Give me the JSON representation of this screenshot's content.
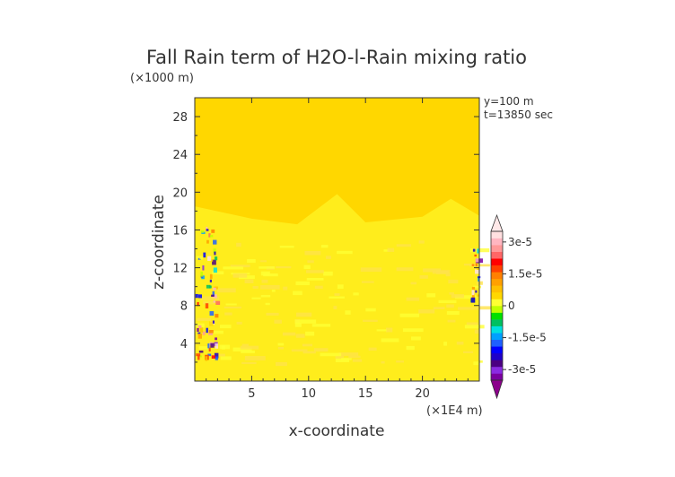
{
  "chart_data": {
    "type": "heatmap",
    "title": "Fall Rain term of H2O-l-Rain mixing ratio",
    "xlabel": "x-coordinate",
    "ylabel": "z-coordinate",
    "x_unit": "(×1E4 m)",
    "y_unit": "(×1000 m)",
    "annotations": [
      "y=100 m",
      "t=13850 sec"
    ],
    "xlim": [
      0,
      25
    ],
    "ylim": [
      0,
      30
    ],
    "x_ticks": [
      5,
      10,
      15,
      20
    ],
    "y_ticks": [
      4,
      8,
      12,
      16,
      20,
      24,
      28
    ],
    "colorbar": {
      "range": [
        -3.5e-05,
        3.5e-05
      ],
      "tick_values": [
        3e-05,
        1.5e-05,
        0,
        -1.5e-05,
        -3e-05
      ],
      "tick_labels": [
        "3e-5",
        "1.5e-5",
        "0",
        "-1.5e-5",
        "-3e-5"
      ],
      "colors": [
        "#7a00a0",
        "#8a2be2",
        "#4b0082",
        "#1e00c8",
        "#0000ff",
        "#1e60ff",
        "#00a0ff",
        "#00e0e0",
        "#00c060",
        "#00e000",
        "#c0ff00",
        "#ffff33",
        "#ffd700",
        "#ffc000",
        "#ffa000",
        "#ff8000",
        "#ff4000",
        "#ff0000",
        "#ff6666",
        "#ff9999",
        "#ffb6c1",
        "#ffe0e0"
      ]
    },
    "field_description": {
      "background_value": 0,
      "background_color": "#ffd700",
      "active_layer_top_estimate": [
        [
          0,
          18.5
        ],
        [
          5,
          17.2
        ],
        [
          9,
          16.6
        ],
        [
          12.5,
          19.8
        ],
        [
          15,
          16.8
        ],
        [
          20,
          17.4
        ],
        [
          22.5,
          19.3
        ],
        [
          25,
          17.5
        ]
      ],
      "active_color": "#ffff33"
    }
  }
}
